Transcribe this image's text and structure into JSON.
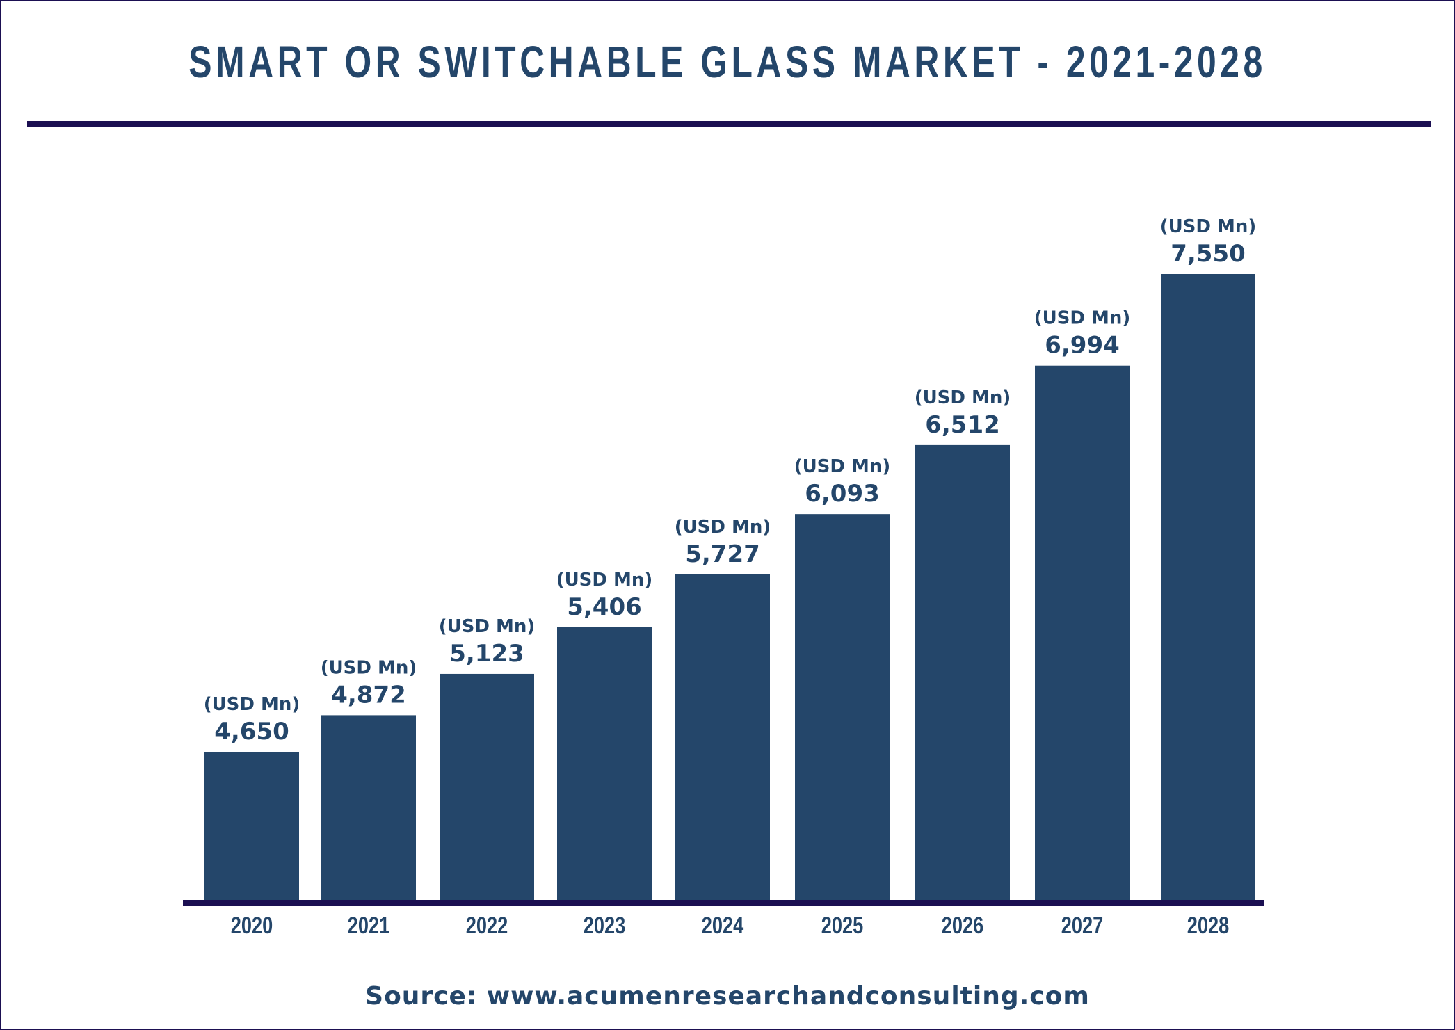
{
  "title": "SMART OR SWITCHABLE GLASS MARKET - 2021-2028",
  "source": "Source: www.acumenresearchandconsulting.com",
  "colors": {
    "bar": "#24466a",
    "axis": "#1b0f52",
    "text": "#24466a"
  },
  "chart_data": {
    "type": "bar",
    "title": "SMART OR SWITCHABLE GLASS MARKET - 2021-2028",
    "categories": [
      "2020",
      "2021",
      "2022",
      "2023",
      "2024",
      "2025",
      "2026",
      "2027",
      "2028"
    ],
    "values": [
      4650,
      4872,
      5123,
      5406,
      5727,
      6093,
      6512,
      6994,
      7550
    ],
    "data_labels": [
      "4,650",
      "4,872",
      "5,123",
      "5,406",
      "5,727",
      "6,093",
      "6,512",
      "6,994",
      "7,550"
    ],
    "unit_label": "(USD Mn)",
    "xlabel": "",
    "ylabel": "",
    "grid": false,
    "legend": "none"
  }
}
